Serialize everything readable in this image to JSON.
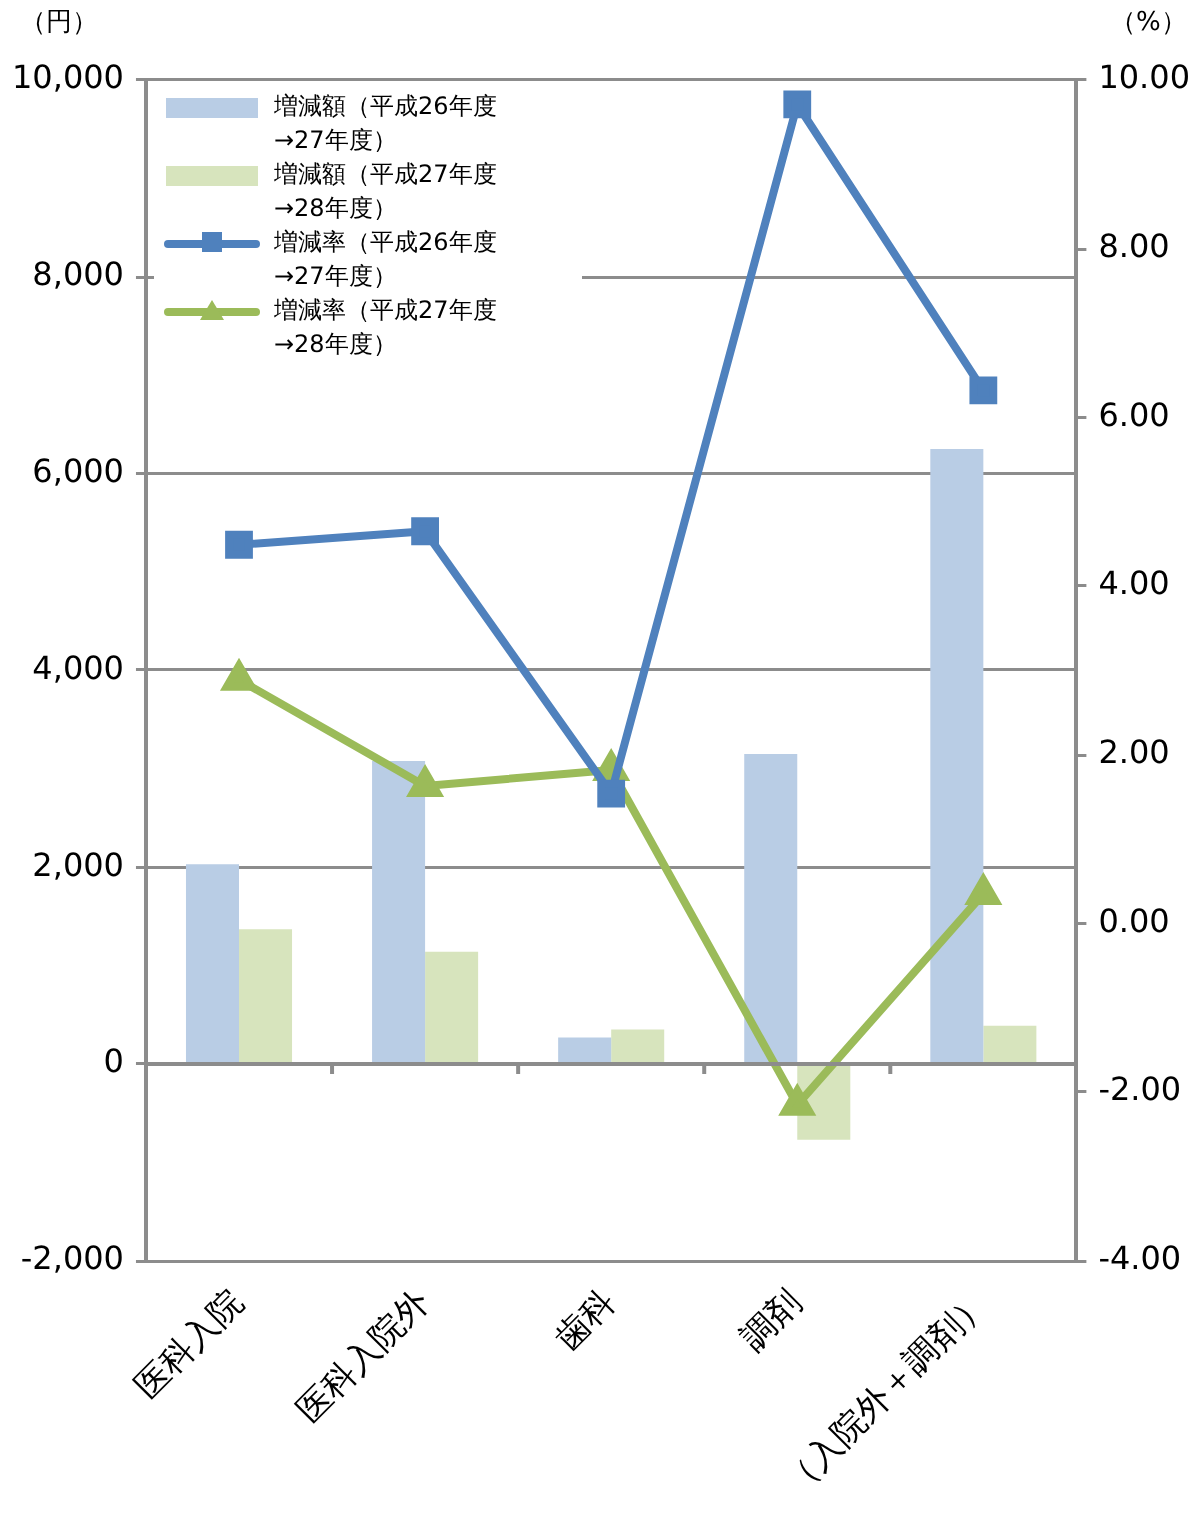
{
  "chart_data": {
    "type": "bar",
    "ylabel": "（円）",
    "y2label": "（%）",
    "categories": [
      "医科入院",
      "医科入院外",
      "歯科",
      "調剤",
      "（入院外＋調剤）"
    ],
    "series": [
      {
        "name": "増減額（平成26年度→27年度）",
        "color": "#b9cde5",
        "values": [
          2030,
          3080,
          270,
          3150,
          6250
        ]
      },
      {
        "name": "増減額（平成27年度→28年度）",
        "color": "#d7e4bd",
        "values": [
          1370,
          1140,
          350,
          -770,
          390
        ]
      },
      {
        "name": "増減率（平成26年度→27年度）",
        "type": "line",
        "axis": "y2",
        "marker": "square",
        "color": "#4f81bd",
        "values": [
          4.49,
          4.65,
          1.54,
          9.71,
          6.32
        ]
      },
      {
        "name": "増減率（平成27年度→28年度）",
        "type": "line",
        "axis": "y2",
        "marker": "triangle",
        "color": "#9bbb59",
        "values": [
          2.89,
          1.63,
          1.82,
          -2.15,
          0.35
        ]
      }
    ],
    "ylim": [
      -2000,
      10000
    ],
    "yticks": [
      {
        "value": -2000,
        "label": "-2,000"
      },
      0,
      {
        "value": 2000,
        "label": "2,000"
      },
      {
        "value": 4000,
        "label": "4,000"
      },
      {
        "value": 6000,
        "label": "6,000"
      },
      {
        "value": 8000,
        "label": "8,000"
      },
      {
        "value": 10000,
        "label": "10,000"
      }
    ],
    "y2lim": [
      -4,
      10
    ],
    "y2ticks": [
      {
        "value": -4,
        "label": "-4.00"
      },
      {
        "value": -2,
        "label": "-2.00"
      },
      {
        "value": 0,
        "label": "0.00"
      },
      {
        "value": 2,
        "label": "2.00"
      },
      {
        "value": 4,
        "label": "4.00"
      },
      {
        "value": 6,
        "label": "6.00"
      },
      {
        "value": 8,
        "label": "8.00"
      },
      {
        "value": 10,
        "label": "10.00"
      }
    ],
    "grid": "y",
    "legend": "top left"
  }
}
